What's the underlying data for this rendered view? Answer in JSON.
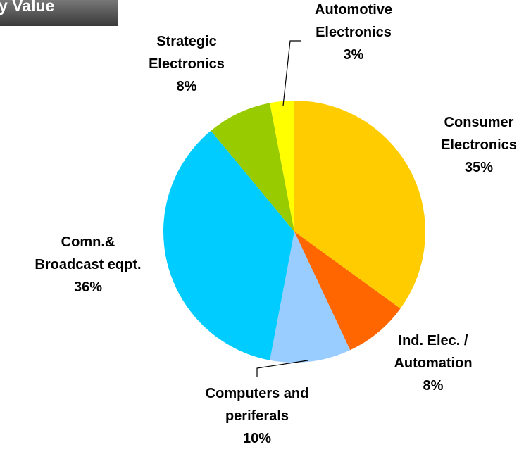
{
  "chart_data": {
    "type": "pie",
    "title": "by Value",
    "categories": [
      "Consumer\nElectronics",
      "Ind. Elec. /\nAutomation",
      "Computers and\nperiferals",
      "Comn.&\nBroadcast eqpt.",
      "Strategic\nElectronics",
      "Automotive\nElectronics"
    ],
    "values": [
      35,
      8,
      10,
      36,
      8,
      3
    ],
    "value_labels": [
      "35%",
      "8%",
      "10%",
      "36%",
      "8%",
      "3%"
    ],
    "colors": [
      "#FFCC00",
      "#FF6600",
      "#99CCFF",
      "#00CCFF",
      "#99CC00",
      "#FFFF00"
    ]
  }
}
